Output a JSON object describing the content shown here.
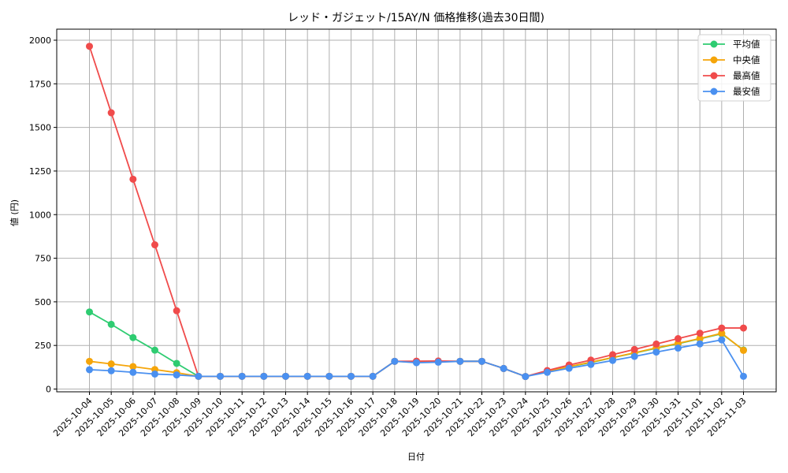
{
  "chart_data": {
    "type": "line",
    "title": "レッド・ガジェット/15AY/N 価格推移(過去30日間)",
    "xlabel": "日付",
    "ylabel": "値 (円)",
    "ylim": [
      0,
      2000
    ],
    "yticks": [
      0,
      250,
      500,
      750,
      1000,
      1250,
      1500,
      1750,
      2000
    ],
    "grid": true,
    "legend_position": "upper right",
    "categories": [
      "2025-10-04",
      "2025-10-05",
      "2025-10-06",
      "2025-10-07",
      "2025-10-08",
      "2025-10-09",
      "2025-10-10",
      "2025-10-11",
      "2025-10-12",
      "2025-10-13",
      "2025-10-14",
      "2025-10-15",
      "2025-10-16",
      "2025-10-17",
      "2025-10-18",
      "2025-10-19",
      "2025-10-20",
      "2025-10-21",
      "2025-10-22",
      "2025-10-23",
      "2025-10-24",
      "2025-10-25",
      "2025-10-26",
      "2025-10-27",
      "2025-10-28",
      "2025-10-29",
      "2025-10-30",
      "2025-10-31",
      "2025-11-01",
      "2025-11-02",
      "2025-11-03"
    ],
    "series": [
      {
        "name": "平均値",
        "color": "#2ecc71",
        "values": [
          442,
          371,
          295,
          223,
          147,
          73,
          73,
          73,
          73,
          73,
          73,
          73,
          73,
          73,
          159,
          155,
          158,
          159,
          159,
          118,
          72,
          101,
          128,
          152,
          180,
          206,
          234,
          260,
          288,
          317,
          224
        ]
      },
      {
        "name": "中央値",
        "color": "#f5a50a",
        "values": [
          159,
          144,
          129,
          112,
          94,
          73,
          73,
          73,
          73,
          73,
          73,
          73,
          73,
          73,
          159,
          155,
          158,
          159,
          159,
          118,
          72,
          101,
          129,
          154,
          181,
          208,
          236,
          262,
          290,
          320,
          222
        ]
      },
      {
        "name": "最高値",
        "color": "#f04b4b",
        "values": [
          1965,
          1584,
          1203,
          827,
          449,
          73,
          73,
          73,
          73,
          73,
          73,
          73,
          73,
          73,
          159,
          160,
          161,
          159,
          159,
          118,
          72,
          106,
          138,
          166,
          197,
          227,
          258,
          289,
          320,
          350,
          350
        ]
      },
      {
        "name": "最安値",
        "color": "#4a90f0",
        "values": [
          111,
          105,
          96,
          86,
          81,
          73,
          73,
          73,
          73,
          73,
          73,
          73,
          73,
          73,
          159,
          151,
          154,
          159,
          159,
          118,
          72,
          96,
          119,
          141,
          164,
          187,
          212,
          235,
          259,
          282,
          73
        ]
      }
    ]
  }
}
